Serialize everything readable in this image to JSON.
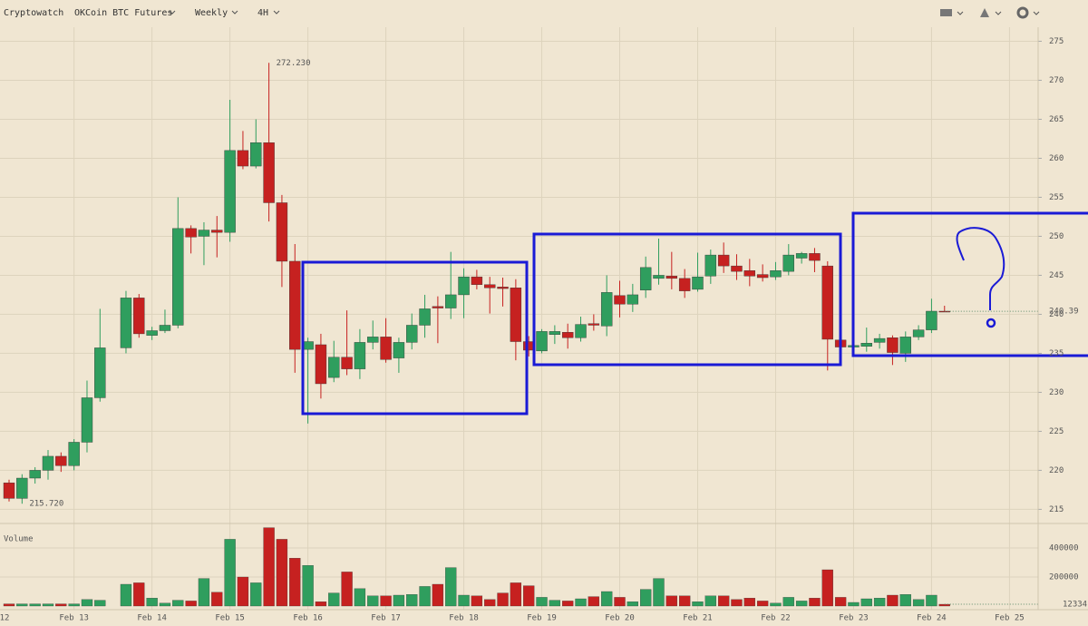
{
  "toolbar": {
    "site": "Cryptowatch",
    "market": "OKCoin BTC Futures",
    "period": "Weekly",
    "interval": "4H"
  },
  "chart_data": {
    "type": "candlestick",
    "categories": [
      "12",
      null,
      null,
      null,
      null,
      null,
      "Feb 13",
      null,
      null,
      null,
      null,
      null,
      "Feb 14",
      null,
      null,
      null,
      null,
      null,
      "Feb 15",
      null,
      null,
      null,
      null,
      null,
      "Feb 16",
      null,
      null,
      null,
      null,
      null,
      "Feb 17",
      null,
      null,
      null,
      null,
      null,
      "Feb 18",
      null,
      null,
      null,
      null,
      null,
      "Feb 19",
      null,
      null,
      null,
      null,
      null,
      "Feb 20",
      null,
      null,
      null,
      null,
      null,
      "Feb 21",
      null,
      null,
      null,
      null,
      null,
      "Feb 22",
      null,
      null,
      null,
      null,
      null,
      "Feb 23",
      null,
      null,
      null,
      null,
      null,
      "Feb 24",
      null,
      null,
      null,
      null,
      null,
      "Feb 25"
    ],
    "open": [
      null,
      218.4,
      216.4,
      219.0,
      220.0,
      221.8,
      220.6,
      223.6,
      229.3,
      null,
      235.7,
      242.1,
      237.3,
      237.9,
      238.6,
      251.0,
      250.0,
      250.8,
      250.5,
      261.0,
      259.0,
      262.0,
      254.3,
      246.8,
      235.5,
      236.1,
      231.9,
      234.5,
      233.0,
      236.4,
      237.1,
      234.4,
      236.4,
      238.6,
      241.0,
      240.8,
      242.5,
      244.8,
      243.8,
      243.5,
      243.4,
      236.5,
      235.3,
      237.4,
      237.7,
      237.0,
      238.8,
      238.5,
      242.4,
      241.3,
      243.1,
      244.6,
      244.9,
      244.6,
      243.2,
      244.9,
      247.6,
      246.2,
      245.6,
      245.1,
      244.8,
      245.5,
      247.2,
      247.8,
      246.2,
      236.7,
      235.8,
      235.9,
      236.4,
      237.0,
      235.0,
      237.1,
      238.0,
      240.4,
      null,
      null,
      null,
      null,
      null
    ],
    "high": [
      null,
      218.8,
      219.5,
      220.4,
      222.6,
      222.3,
      224.0,
      231.5,
      240.7,
      null,
      243.0,
      242.6,
      238.4,
      240.6,
      255.0,
      251.4,
      251.8,
      252.6,
      267.5,
      263.5,
      265.0,
      272.23,
      255.3,
      249.0,
      237.0,
      237.5,
      236.6,
      240.5,
      238.1,
      239.2,
      239.5,
      237.0,
      240.1,
      242.5,
      242.3,
      248.0,
      245.9,
      245.7,
      244.8,
      244.7,
      244.5,
      237.2,
      238.1,
      238.6,
      238.8,
      239.7,
      240.0,
      245.0,
      244.3,
      243.9,
      247.4,
      249.7,
      248.0,
      245.8,
      247.9,
      248.3,
      249.2,
      247.7,
      247.1,
      246.4,
      246.7,
      249.0,
      248.0,
      248.5,
      246.8,
      237.3,
      236.7,
      238.3,
      237.5,
      237.3,
      237.8,
      238.6,
      242.0,
      241.1,
      null,
      null,
      null,
      null,
      null
    ],
    "low": [
      null,
      216.0,
      215.72,
      218.3,
      218.8,
      219.8,
      220.0,
      222.3,
      228.8,
      null,
      235.0,
      237.0,
      236.7,
      237.6,
      238.2,
      247.8,
      246.3,
      247.3,
      249.3,
      258.6,
      258.7,
      251.9,
      243.5,
      232.5,
      226.0,
      229.2,
      231.3,
      232.2,
      231.7,
      235.5,
      233.8,
      232.5,
      235.5,
      237.0,
      236.3,
      239.4,
      239.5,
      243.2,
      240.1,
      241.0,
      234.1,
      234.6,
      235.0,
      236.2,
      235.6,
      236.5,
      237.9,
      237.2,
      239.6,
      240.3,
      242.1,
      243.8,
      243.2,
      242.1,
      242.9,
      243.9,
      245.3,
      244.4,
      243.6,
      244.2,
      244.4,
      245.0,
      246.5,
      245.4,
      232.8,
      235.0,
      235.0,
      235.2,
      235.6,
      233.5,
      233.9,
      236.7,
      237.6,
      240.3,
      null,
      null,
      null,
      null,
      null
    ],
    "close": [
      null,
      216.4,
      219.0,
      220.0,
      221.8,
      220.6,
      223.6,
      229.3,
      235.7,
      null,
      242.1,
      237.5,
      237.9,
      238.6,
      251.0,
      249.9,
      250.8,
      250.5,
      261.0,
      259.0,
      262.0,
      254.3,
      246.8,
      235.5,
      236.5,
      231.1,
      234.5,
      233.0,
      236.4,
      237.1,
      234.2,
      236.4,
      238.6,
      240.7,
      240.8,
      242.5,
      244.8,
      243.8,
      243.4,
      243.3,
      236.5,
      235.4,
      237.8,
      237.8,
      237.0,
      238.7,
      238.6,
      242.8,
      241.3,
      242.5,
      246.0,
      245.0,
      244.6,
      243.0,
      244.8,
      247.6,
      246.2,
      245.5,
      244.9,
      244.7,
      245.6,
      247.6,
      247.8,
      246.9,
      236.8,
      235.8,
      236.0,
      236.3,
      236.9,
      235.1,
      237.1,
      238.0,
      240.4,
      240.39,
      null,
      null,
      null,
      null,
      null
    ],
    "volume": [
      null,
      15000,
      15000,
      15000,
      15000,
      15000,
      15000,
      45000,
      40000,
      null,
      150000,
      160000,
      55000,
      20000,
      40000,
      35000,
      190000,
      95000,
      460000,
      200000,
      160000,
      540000,
      460000,
      330000,
      280000,
      30000,
      90000,
      235000,
      120000,
      70000,
      70000,
      75000,
      80000,
      135000,
      150000,
      265000,
      75000,
      70000,
      45000,
      90000,
      160000,
      140000,
      60000,
      40000,
      35000,
      50000,
      65000,
      100000,
      60000,
      30000,
      115000,
      190000,
      70000,
      70000,
      30000,
      70000,
      70000,
      45000,
      55000,
      35000,
      20000,
      60000,
      35000,
      55000,
      250000,
      60000,
      25000,
      50000,
      55000,
      75000,
      80000,
      45000,
      75000,
      12334,
      null,
      null,
      null,
      null,
      null
    ],
    "up_color": "#2f9e5e",
    "down_color": "#c62120",
    "ylim": [
      214,
      276.8
    ],
    "yticks": [
      215,
      220,
      225,
      230,
      235,
      240,
      245,
      250,
      255,
      260,
      265,
      270,
      275
    ],
    "volume_label": "Volume",
    "volume_ylim": [
      0,
      550000
    ],
    "volume_yticks": [
      200000,
      400000
    ],
    "last_price": 240.39,
    "last_volume": 12334,
    "high_label": {
      "value": 272.23,
      "label": "272.230"
    },
    "low_label": {
      "value": 215.72,
      "label": "215.720"
    },
    "grid": true
  }
}
